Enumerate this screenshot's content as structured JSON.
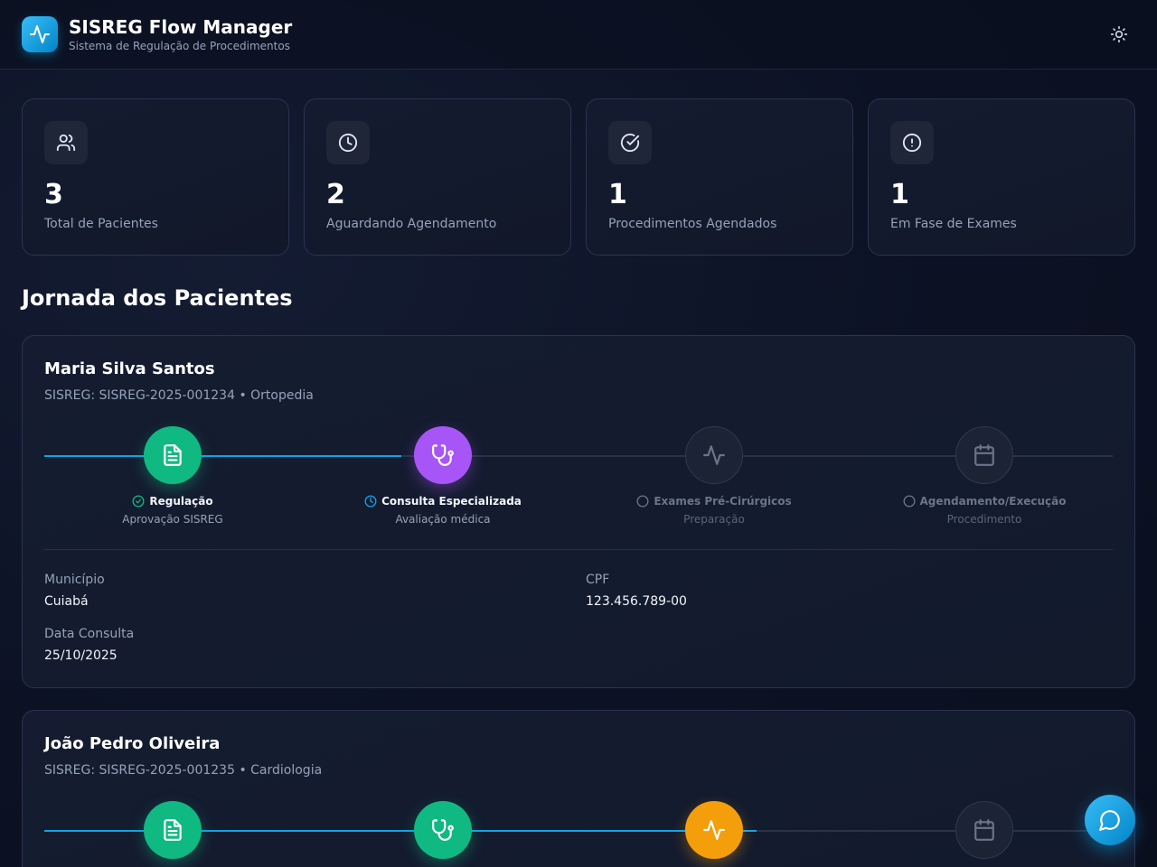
{
  "header": {
    "title": "SISREG Flow Manager",
    "subtitle": "Sistema de Regulação de Procedimentos",
    "logo_icon": "activity-icon",
    "theme_icon": "sun-icon"
  },
  "stats": [
    {
      "value": "3",
      "label": "Total de Pacientes",
      "icon": "users-icon"
    },
    {
      "value": "2",
      "label": "Aguardando Agendamento",
      "icon": "clock-icon"
    },
    {
      "value": "1",
      "label": "Procedimentos Agendados",
      "icon": "check-circle-icon"
    },
    {
      "value": "1",
      "label": "Em Fase de Exames",
      "icon": "alert-circle-icon"
    }
  ],
  "section_title": "Jornada dos Pacientes",
  "patients": [
    {
      "name": "Maria Silva Santos",
      "meta": "SISREG: SISREG-2025-001234 • Ortopedia",
      "steps": [
        {
          "title": "Regulação",
          "sub": "Aprovação SISREG",
          "status": "done"
        },
        {
          "title": "Consulta Especializada",
          "sub": "Avaliação médica",
          "status": "current"
        },
        {
          "title": "Exames Pré-Cirúrgicos",
          "sub": "Preparação",
          "status": "pending"
        },
        {
          "title": "Agendamento/Execução",
          "sub": "Procedimento",
          "status": "pending"
        }
      ],
      "info": {
        "municipio_label": "Município",
        "municipio": "Cuiabá",
        "cpf_label": "CPF",
        "cpf": "123.456.789-00",
        "data_label": "Data Consulta",
        "data": "25/10/2025"
      }
    },
    {
      "name": "João Pedro Oliveira",
      "meta": "SISREG: SISREG-2025-001235 • Cardiologia",
      "steps": [
        {
          "status": "done"
        },
        {
          "status": "done"
        },
        {
          "status": "current"
        },
        {
          "status": "pending"
        }
      ]
    }
  ],
  "colors": {
    "done": "#10b981",
    "current_consulta": "#a855f7",
    "current_exames": "#f59e0b",
    "accent": "#0ea5e9",
    "pending": "#1c2335"
  },
  "chat_icon": "message-circle-icon"
}
